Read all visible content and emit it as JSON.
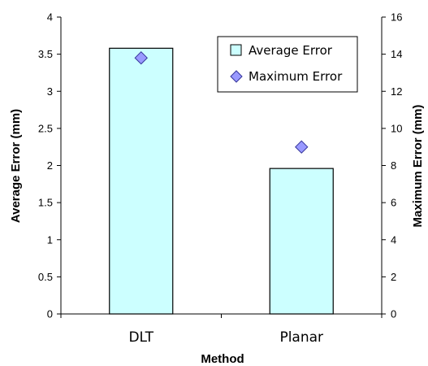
{
  "chart_data": {
    "type": "bar",
    "categories": [
      "DLT",
      "Planar"
    ],
    "series": [
      {
        "name": "Average Error",
        "kind": "bar",
        "axis": "left",
        "values": [
          3.58,
          1.96
        ]
      },
      {
        "name": "Maximum Error",
        "kind": "marker",
        "axis": "right",
        "values": [
          13.8,
          9.0
        ]
      }
    ],
    "xlabel": "Method",
    "ylabel": "Average Error (mm)",
    "y2label": "Maximum Error (mm)",
    "ylim": [
      0,
      4
    ],
    "y2lim": [
      0,
      16
    ],
    "yticks": [
      "0",
      "0.5",
      "1",
      "1.5",
      "2",
      "2.5",
      "3",
      "3.5",
      "4"
    ],
    "y2ticks": [
      "0",
      "2",
      "4",
      "6",
      "8",
      "10",
      "12",
      "14",
      "16"
    ],
    "grid": false,
    "legend_position": "top-right",
    "colors": {
      "bar_fill": "#ccffff",
      "bar_stroke": "#000000",
      "marker_fill": "#9999ff",
      "marker_stroke": "#333399"
    }
  }
}
